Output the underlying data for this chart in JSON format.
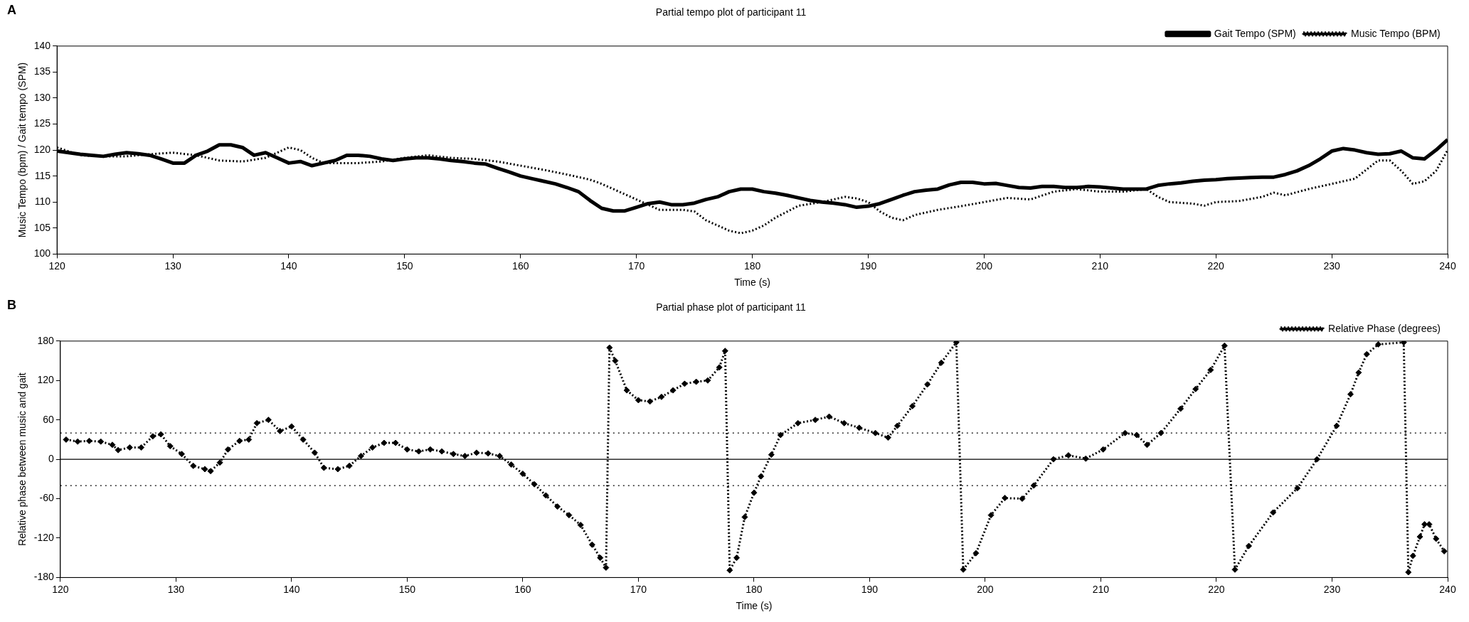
{
  "chart_data": [
    {
      "type": "line",
      "title": "Partial tempo plot of participant 11",
      "xlabel": "Time (s)",
      "ylabel": "Music Tempo (bpm) / Gait tempo (SPM)",
      "annotations": [
        "A"
      ],
      "xlim": [
        120,
        240
      ],
      "xticks": [
        120,
        130,
        140,
        150,
        160,
        170,
        180,
        190,
        200,
        210,
        220,
        230,
        240
      ],
      "ylim": [
        100,
        140
      ],
      "yticks": [
        100,
        105,
        110,
        115,
        120,
        125,
        130,
        135,
        140
      ],
      "grid": false,
      "legend": "top right",
      "marker": "none",
      "series": [
        {
          "name": "Gait Tempo (SPM)",
          "color": "#000000",
          "line_style": "solid",
          "x": [
            120,
            121,
            122,
            123,
            124,
            125,
            126,
            127,
            128,
            129,
            130,
            131,
            132,
            133,
            134,
            135,
            136,
            137,
            138,
            139,
            140,
            141,
            142,
            143,
            144,
            145,
            146,
            147,
            148,
            149,
            150,
            151,
            152,
            153,
            154,
            155,
            156,
            157,
            158,
            159,
            160,
            161,
            162,
            163,
            164,
            165,
            166,
            167,
            168,
            169,
            170,
            171,
            172,
            173,
            174,
            175,
            176,
            177,
            178,
            179,
            180,
            181,
            182,
            183,
            184,
            185,
            186,
            187,
            188,
            189,
            190,
            191,
            192,
            193,
            194,
            195,
            196,
            197,
            198,
            199,
            200,
            201,
            202,
            203,
            204,
            205,
            206,
            207,
            208,
            209,
            210,
            211,
            212,
            213,
            214,
            215,
            216,
            217,
            218,
            219,
            220,
            221,
            222,
            223,
            224,
            225,
            226,
            227,
            228,
            229,
            230,
            231,
            232,
            233,
            234,
            235,
            236,
            237,
            238,
            239,
            240
          ],
          "values": [
            119.8,
            119.5,
            119.2,
            119,
            118.8,
            119.2,
            119.5,
            119.3,
            119,
            118.3,
            117.5,
            117.5,
            119,
            119.8,
            121,
            121,
            120.5,
            119,
            119.5,
            118.5,
            117.5,
            117.8,
            117,
            117.5,
            118,
            119,
            119,
            118.8,
            118.3,
            118,
            118.3,
            118.5,
            118.5,
            118.3,
            118,
            117.8,
            117.5,
            117.3,
            116.5,
            115.8,
            115,
            114.5,
            114,
            113.5,
            112.8,
            112,
            110.3,
            108.8,
            108.3,
            108.3,
            109,
            109.7,
            110,
            109.5,
            109.5,
            109.8,
            110.5,
            111,
            112,
            112.5,
            112.5,
            112,
            111.7,
            111.3,
            110.8,
            110.3,
            110,
            109.8,
            109.5,
            109,
            109.2,
            109.7,
            110.5,
            111.3,
            112,
            112.3,
            112.5,
            113.3,
            113.8,
            113.8,
            113.5,
            113.6,
            113.2,
            112.8,
            112.7,
            113,
            113,
            112.8,
            112.8,
            113,
            112.9,
            112.7,
            112.5,
            112.5,
            112.5,
            113.2,
            113.5,
            113.7,
            114,
            114.2,
            114.3,
            114.5,
            114.6,
            114.7,
            114.8,
            114.8,
            115.3,
            116,
            117,
            118.3,
            119.8,
            120.3,
            120,
            119.5,
            119.2,
            119.3,
            119.8,
            118.5,
            118.3,
            120,
            122
          ]
        },
        {
          "name": "Music Tempo (BPM)",
          "color": "#000000",
          "line_style": "dotted",
          "x": [
            120,
            122,
            124,
            126,
            128,
            130,
            132,
            134,
            136,
            138,
            140,
            141,
            142,
            143,
            144,
            146,
            148,
            150,
            152,
            154,
            156,
            158,
            160,
            162,
            164,
            166,
            167,
            168,
            170,
            172,
            174,
            175,
            176,
            178,
            179,
            180,
            181,
            182,
            184,
            186,
            188,
            189,
            190,
            191,
            192,
            193,
            194,
            196,
            198,
            200,
            202,
            204,
            206,
            208,
            210,
            212,
            214,
            215,
            216,
            218,
            219,
            220,
            222,
            224,
            225,
            226,
            228,
            230,
            232,
            234,
            235,
            236,
            237,
            238,
            239,
            240
          ],
          "values": [
            120.5,
            119,
            118.8,
            118.8,
            119.2,
            119.5,
            119,
            118,
            117.8,
            118.5,
            120.5,
            120,
            118.5,
            117.5,
            117.5,
            117.5,
            117.8,
            118.5,
            119,
            118.5,
            118.3,
            117.8,
            117,
            116.2,
            115.3,
            114.3,
            113.5,
            112.5,
            110.5,
            108.5,
            108.5,
            108.2,
            106.5,
            104.5,
            104,
            104.5,
            105.5,
            107,
            109.3,
            110,
            111,
            110.7,
            110,
            108.2,
            107,
            106.5,
            107.5,
            108.5,
            109.2,
            110,
            110.8,
            110.5,
            112,
            112.5,
            112,
            112,
            112.5,
            111,
            110,
            109.7,
            109.3,
            110,
            110.2,
            111,
            111.8,
            111.3,
            112.5,
            113.5,
            114.5,
            118,
            118,
            116,
            113.5,
            114,
            116,
            120
          ]
        }
      ]
    },
    {
      "type": "line",
      "title": "Partial phase plot of participant 11",
      "xlabel": "Time (s)",
      "ylabel": "Relative phase between music and gait",
      "annotations": [
        "B"
      ],
      "xlim": [
        120,
        240
      ],
      "xticks": [
        120,
        130,
        140,
        150,
        160,
        170,
        180,
        190,
        200,
        210,
        220,
        230,
        240
      ],
      "ylim": [
        -180,
        180
      ],
      "yticks": [
        -180,
        -120,
        -60,
        0,
        60,
        120,
        180
      ],
      "grid": false,
      "legend": "top right",
      "marker": "diamond",
      "line_style": "dotted",
      "ref_lines": [
        {
          "axis": "y",
          "value": 0,
          "label": null,
          "color": "#000000",
          "line_style": "solid"
        },
        {
          "axis": "y",
          "value": 40,
          "label": null,
          "color": "#000000",
          "line_style": "dotted"
        },
        {
          "axis": "y",
          "value": -40,
          "label": null,
          "color": "#000000",
          "line_style": "dotted"
        }
      ],
      "series": [
        {
          "name": "Relative Phase (degrees)",
          "color": "#000000",
          "x": [
            120.5,
            121.5,
            122.5,
            123.5,
            124.5,
            125,
            126,
            127,
            128,
            128.7,
            129.5,
            130.5,
            131.5,
            132.5,
            133,
            133.8,
            134.5,
            135.5,
            136.3,
            137,
            138,
            139,
            140,
            141,
            142,
            142.8,
            144,
            145,
            146,
            147,
            148,
            149,
            150,
            151,
            152,
            153,
            154,
            155,
            156,
            157,
            158,
            159,
            160,
            161,
            162,
            163,
            164,
            165,
            166,
            166.7,
            167.2,
            167.5,
            168,
            169,
            170,
            171,
            172,
            173,
            174,
            175,
            176,
            177,
            177.5,
            177.9,
            178.5,
            179.2,
            180,
            180.6,
            181.5,
            182.3,
            183.8,
            185.3,
            186.5,
            187.8,
            189.1,
            190.5,
            191.6,
            192.4,
            193.7,
            195,
            196.2,
            197.5,
            198.1,
            199.2,
            200.5,
            201.7,
            203.2,
            204.2,
            205.9,
            207.2,
            208.7,
            210.2,
            212.1,
            213.1,
            214,
            215.2,
            216.9,
            218.2,
            219.5,
            220.7,
            221.6,
            222.8,
            224.9,
            227,
            228.7,
            230.4,
            231.6,
            232.3,
            233,
            234,
            236.2,
            236.6,
            237,
            237.6,
            238,
            238.4,
            239,
            239.7
          ],
          "values": [
            30,
            27,
            28,
            27,
            22,
            14,
            18,
            18,
            35,
            38,
            20,
            8,
            -10,
            -15,
            -18,
            -5,
            15,
            28,
            30,
            55,
            60,
            43,
            50,
            30,
            10,
            -13,
            -15,
            -10,
            5,
            18,
            25,
            25,
            15,
            12,
            15,
            12,
            8,
            5,
            10,
            9,
            5,
            -8,
            -22,
            -38,
            -55,
            -72,
            -85,
            -100,
            -130,
            -150,
            -165,
            170,
            150,
            105,
            90,
            88,
            95,
            105,
            115,
            118,
            120,
            140,
            165,
            -169,
            -150,
            -88,
            -51,
            -26,
            7,
            37,
            55,
            60,
            65,
            55,
            48,
            40,
            33,
            51,
            81,
            114,
            147,
            178,
            -168,
            -143,
            -85,
            -59,
            -60,
            -40,
            0,
            6,
            1,
            15,
            40,
            37,
            22,
            40,
            77,
            107,
            136,
            173,
            -168,
            -132,
            -81,
            -44,
            0,
            51,
            99,
            132,
            160,
            175,
            178,
            -172,
            -147,
            -118,
            -99,
            -99,
            -121,
            -140
          ]
        }
      ]
    }
  ]
}
